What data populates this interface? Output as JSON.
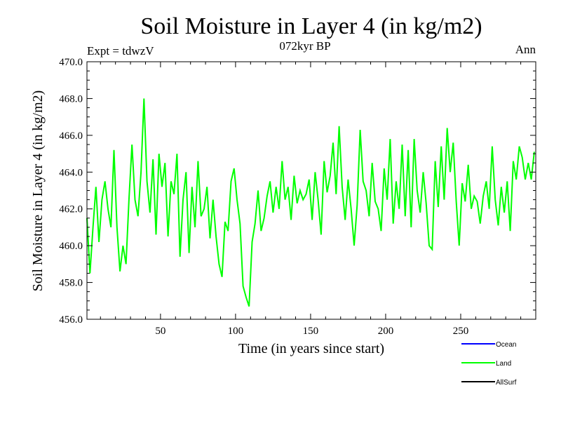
{
  "chart_data": {
    "type": "line",
    "title": "Soil Moisture in Layer 4 (in kg/m2)",
    "subtitle": "072kyr BP",
    "left_note": "Expt = tdwzV",
    "right_note": "Ann",
    "xlabel": "Time (in years since start)",
    "ylabel": "Soil Moisture in Layer 4 (in kg/m2)",
    "xlim": [
      1,
      300
    ],
    "ylim": [
      456.0,
      470.0
    ],
    "x_ticks": [
      50,
      100,
      150,
      200,
      250
    ],
    "x_tick_labels": [
      "50",
      "100",
      "150",
      "200",
      "250"
    ],
    "y_ticks": [
      456,
      458,
      460,
      462,
      464,
      466,
      468,
      470
    ],
    "y_tick_labels": [
      "456.0",
      "458.0",
      "460.0",
      "462.0",
      "464.0",
      "466.0",
      "468.0",
      "470.0"
    ],
    "grid": false,
    "legend_position": "bottom-right",
    "legend": [
      {
        "name": "Ocean",
        "color": "#0000ff"
      },
      {
        "name": "Land",
        "color": "#00ff00"
      },
      {
        "name": "AllSurf",
        "color": "#000000"
      }
    ],
    "series": [
      {
        "name": "Land",
        "color": "#00ff00",
        "x": [
          1,
          3,
          5,
          7,
          9,
          11,
          13,
          15,
          17,
          19,
          21,
          23,
          25,
          27,
          29,
          31,
          33,
          35,
          37,
          39,
          41,
          43,
          45,
          47,
          49,
          51,
          53,
          55,
          57,
          59,
          61,
          63,
          65,
          67,
          69,
          71,
          73,
          75,
          77,
          79,
          81,
          83,
          85,
          87,
          89,
          91,
          93,
          95,
          97,
          99,
          101,
          103,
          105,
          107,
          109,
          111,
          113,
          115,
          117,
          119,
          121,
          123,
          125,
          127,
          129,
          131,
          133,
          135,
          137,
          139,
          141,
          143,
          145,
          147,
          149,
          151,
          153,
          155,
          157,
          159,
          161,
          163,
          165,
          167,
          169,
          171,
          173,
          175,
          177,
          179,
          181,
          183,
          185,
          187,
          189,
          191,
          193,
          195,
          197,
          199,
          201,
          203,
          205,
          207,
          209,
          211,
          213,
          215,
          217,
          219,
          221,
          223,
          225,
          227,
          229,
          231,
          233,
          235,
          237,
          239,
          241,
          243,
          245,
          247,
          249,
          251,
          253,
          255,
          257,
          259,
          261,
          263,
          265,
          267,
          269,
          271,
          273,
          275,
          277,
          279,
          281,
          283,
          285,
          287,
          289,
          291,
          293,
          295,
          297,
          299
        ],
        "y": [
          461.5,
          458.5,
          461.0,
          463.2,
          460.2,
          462.5,
          463.5,
          462.0,
          461.0,
          465.2,
          461.0,
          458.6,
          460.0,
          459.0,
          462.5,
          465.5,
          462.5,
          461.6,
          464.0,
          468.0,
          463.5,
          461.8,
          464.7,
          460.6,
          465.0,
          463.2,
          464.5,
          460.5,
          463.5,
          462.8,
          465.0,
          459.4,
          462.5,
          464.0,
          459.6,
          463.2,
          461.0,
          464.6,
          461.6,
          462.0,
          463.2,
          460.4,
          462.5,
          460.5,
          459.0,
          458.3,
          461.3,
          460.8,
          463.5,
          464.2,
          462.5,
          461.2,
          457.8,
          457.2,
          456.7,
          460.2,
          461.2,
          463.0,
          460.8,
          461.5,
          462.7,
          463.5,
          461.8,
          463.2,
          462.0,
          464.6,
          462.5,
          463.2,
          461.4,
          463.8,
          462.3,
          463.0,
          462.5,
          462.8,
          463.6,
          461.4,
          464.0,
          462.5,
          460.6,
          464.6,
          462.9,
          463.8,
          465.6,
          462.8,
          466.5,
          463.2,
          461.4,
          463.6,
          462.0,
          460.0,
          462.2,
          466.3,
          463.5,
          463.0,
          461.6,
          464.5,
          462.4,
          462.0,
          460.8,
          464.2,
          462.5,
          465.8,
          461.2,
          463.5,
          462.0,
          465.5,
          461.6,
          465.2,
          461.0,
          465.8,
          463.0,
          461.8,
          464.0,
          462.3,
          460.0,
          459.8,
          464.6,
          462.1,
          465.4,
          462.5,
          466.4,
          464.0,
          465.6,
          462.4,
          460.0,
          463.4,
          462.4,
          464.4,
          462.0,
          462.7,
          462.4,
          461.2,
          462.7,
          463.5,
          462.0,
          465.4,
          462.5,
          461.1,
          463.2,
          461.8,
          463.5,
          460.8,
          464.6,
          463.6,
          465.4,
          464.8,
          463.6,
          464.5,
          463.6,
          465.1
        ]
      }
    ]
  }
}
